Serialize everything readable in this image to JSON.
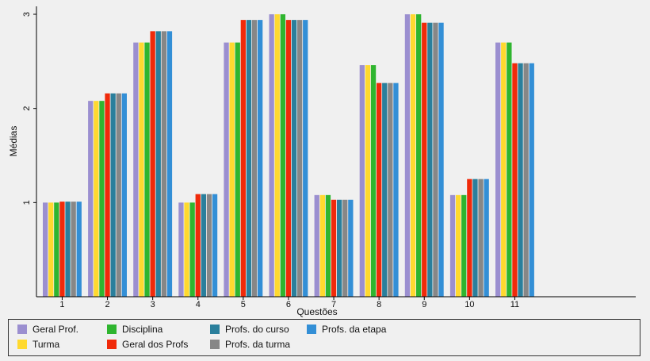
{
  "chart_data": {
    "type": "bar",
    "xlabel": "Questões",
    "ylabel": "Médias",
    "ylim": [
      0,
      3
    ],
    "yticks": [
      1,
      2,
      3
    ],
    "categories": [
      "1",
      "2",
      "3",
      "4",
      "5",
      "6",
      "7",
      "8",
      "9",
      "10",
      "11"
    ],
    "grid": false,
    "legend_position": "bottom",
    "series": [
      {
        "name": "Geral Prof.",
        "color": "#9b8fd0",
        "values": [
          1.0,
          2.08,
          2.7,
          1.0,
          2.7,
          3.0,
          1.08,
          2.46,
          3.0,
          1.08,
          2.7
        ]
      },
      {
        "name": "Turma",
        "color": "#ffd92f",
        "values": [
          1.0,
          2.08,
          2.7,
          1.0,
          2.7,
          3.0,
          1.08,
          2.46,
          3.0,
          1.08,
          2.7
        ]
      },
      {
        "name": "Disciplina",
        "color": "#2fb52f",
        "values": [
          1.0,
          2.08,
          2.7,
          1.0,
          2.7,
          3.0,
          1.08,
          2.46,
          3.0,
          1.08,
          2.7
        ]
      },
      {
        "name": "Geral dos Profs",
        "color": "#f02a0a",
        "values": [
          1.01,
          2.16,
          2.82,
          1.09,
          2.94,
          2.94,
          1.03,
          2.27,
          2.91,
          1.25,
          2.48
        ]
      },
      {
        "name": "Profs. do curso",
        "color": "#2a7f9c",
        "values": [
          1.01,
          2.16,
          2.82,
          1.09,
          2.94,
          2.94,
          1.03,
          2.27,
          2.91,
          1.25,
          2.48
        ]
      },
      {
        "name": "Profs. da turma",
        "color": "#878787",
        "values": [
          1.01,
          2.16,
          2.82,
          1.09,
          2.94,
          2.94,
          1.03,
          2.27,
          2.91,
          1.25,
          2.48
        ]
      },
      {
        "name": "Profs. da etapa",
        "color": "#338fd6",
        "values": [
          1.01,
          2.16,
          2.82,
          1.09,
          2.94,
          2.94,
          1.03,
          2.27,
          2.91,
          1.25,
          2.48
        ]
      }
    ]
  }
}
